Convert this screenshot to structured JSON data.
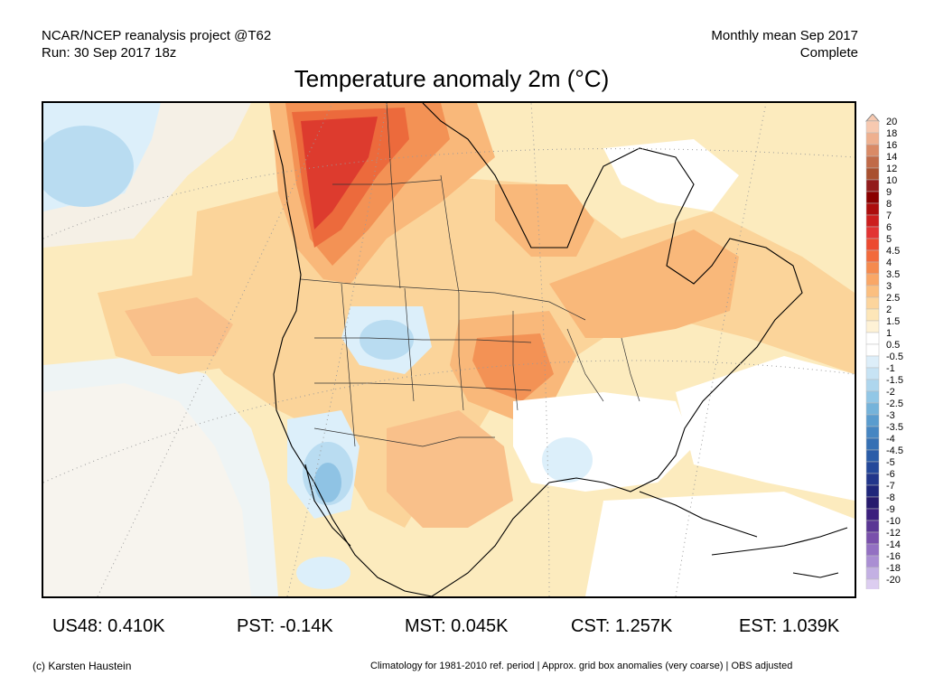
{
  "header": {
    "left_line1": "NCAR/NCEP reanalysis project @T62",
    "left_line2": "Run: 30 Sep 2017 18z",
    "right_line1": "Monthly mean Sep 2017",
    "right_line2": "Complete",
    "title": "Temperature anomaly 2m (°C)"
  },
  "colorbar": {
    "labels": [
      "20",
      "18",
      "16",
      "14",
      "12",
      "10",
      "9",
      "8",
      "7",
      "6",
      "5",
      "4.5",
      "4",
      "3.5",
      "3",
      "2.5",
      "2",
      "1.5",
      "1",
      "0.5",
      "-0.5",
      "-1",
      "-1.5",
      "-2",
      "-2.5",
      "-3",
      "-3.5",
      "-4",
      "-4.5",
      "-5",
      "-6",
      "-7",
      "-8",
      "-9",
      "-10",
      "-12",
      "-14",
      "-16",
      "-18",
      "-20"
    ],
    "colors": [
      "#f7c9b0",
      "#eeb08f",
      "#d98a66",
      "#c06a48",
      "#a9502f",
      "#921c1c",
      "#8a0000",
      "#ac0d0d",
      "#cc1e1e",
      "#e23333",
      "#ec4a30",
      "#f26a3c",
      "#f58a4e",
      "#f9a767",
      "#fbbf80",
      "#fcd59d",
      "#fde6b8",
      "#fef2d6",
      "#ffffff",
      "#ffffff",
      "#ddeef9",
      "#c7e3f4",
      "#aed6ee",
      "#92c7e6",
      "#75b3da",
      "#5a9cce",
      "#4686c2",
      "#3570b4",
      "#2a5ca8",
      "#24489a",
      "#22368b",
      "#1f267b",
      "#261a6d",
      "#3b1f7d",
      "#5a3694",
      "#7950ab",
      "#9370c2",
      "#aa8ed3",
      "#c3b0e3",
      "#dccdf0"
    ]
  },
  "stats": [
    {
      "label": "US48: 0.410K"
    },
    {
      "label": "PST: -0.14K"
    },
    {
      "label": "MST: 0.045K"
    },
    {
      "label": "CST: 1.257K"
    },
    {
      "label": "EST: 1.039K"
    }
  ],
  "footer": {
    "credit": "(c) Karsten Haustein",
    "note": "Climatology for 1981-2010 ref. period | Approx. grid box anomalies (very coarse) | OBS adjusted"
  },
  "palette": {
    "light_warm": "#fcebbe",
    "warm1": "#fbd49a",
    "warm2": "#f9b87a",
    "warm3": "#f39255",
    "warm4": "#ec6a3c",
    "hot": "#dd3b2e",
    "cool1": "#dceffa",
    "cool2": "#b9dcf1",
    "cool3": "#8fc3e4",
    "white": "#ffffff"
  }
}
